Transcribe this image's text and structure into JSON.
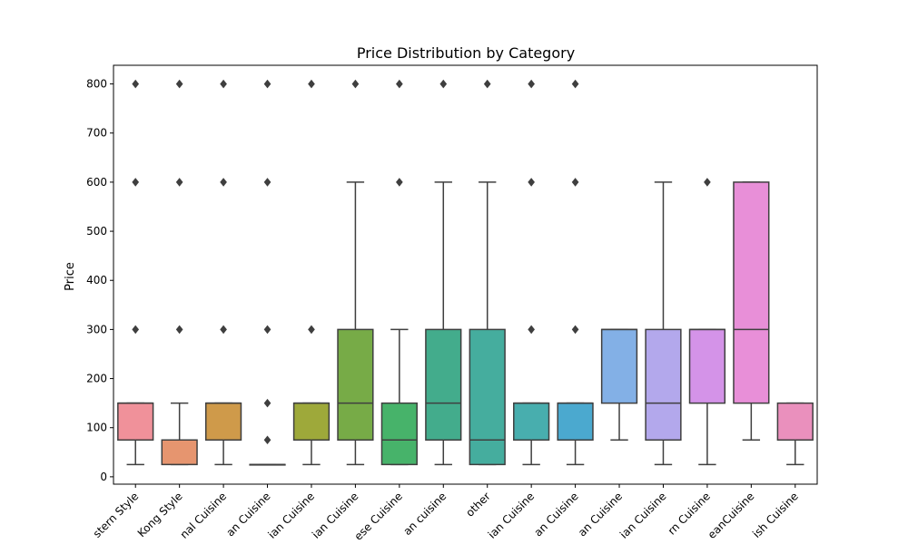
{
  "chart_data": {
    "type": "box",
    "title": "Price Distribution by Category",
    "xlabel": "",
    "ylabel": "Price",
    "ylim": [
      -15,
      838
    ],
    "yticks": [
      0,
      100,
      200,
      300,
      400,
      500,
      600,
      700,
      800
    ],
    "grid": false,
    "categories": [
      {
        "label": "stern Style",
        "color": "#f0919a",
        "q1": 75,
        "median": 150,
        "q3": 150,
        "whisker_low": 25,
        "whisker_high": 150,
        "outliers": [
          300,
          600,
          800
        ]
      },
      {
        "label": "Kong Style",
        "color": "#e6956f",
        "q1": 25,
        "median": 75,
        "q3": 75,
        "whisker_low": 25,
        "whisker_high": 150,
        "outliers": [
          300,
          600,
          800
        ]
      },
      {
        "label": "nal Cuisine",
        "color": "#cf9a4a",
        "q1": 75,
        "median": 150,
        "q3": 150,
        "whisker_low": 25,
        "whisker_high": 150,
        "outliers": [
          300,
          600,
          800
        ]
      },
      {
        "label": "an Cuisine",
        "color": "#b1a04a",
        "q1": 25,
        "median": 25,
        "q3": 25,
        "whisker_low": 25,
        "whisker_high": 25,
        "outliers": [
          75,
          150,
          300,
          600,
          800
        ]
      },
      {
        "label": "ian Cuisine",
        "color": "#9ea93a",
        "q1": 75,
        "median": 150,
        "q3": 150,
        "whisker_low": 25,
        "whisker_high": 150,
        "outliers": [
          300,
          800
        ]
      },
      {
        "label": "ian Cuisine",
        "color": "#77ab47",
        "q1": 75,
        "median": 150,
        "q3": 300,
        "whisker_low": 25,
        "whisker_high": 600,
        "outliers": [
          800
        ]
      },
      {
        "label": "ese Cuisine",
        "color": "#47b36a",
        "q1": 25,
        "median": 75,
        "q3": 150,
        "whisker_low": 25,
        "whisker_high": 300,
        "outliers": [
          600,
          800
        ]
      },
      {
        "label": "an cuisine",
        "color": "#43ac8c",
        "q1": 75,
        "median": 150,
        "q3": 300,
        "whisker_low": 25,
        "whisker_high": 600,
        "outliers": [
          800
        ]
      },
      {
        "label": "other",
        "color": "#45ad9e",
        "q1": 25,
        "median": 75,
        "q3": 300,
        "whisker_low": 25,
        "whisker_high": 600,
        "outliers": [
          800
        ]
      },
      {
        "label": "ian Cuisine",
        "color": "#48aeae",
        "q1": 75,
        "median": 150,
        "q3": 150,
        "whisker_low": 25,
        "whisker_high": 150,
        "outliers": [
          300,
          600,
          800
        ]
      },
      {
        "label": "an Cuisine",
        "color": "#4ba9cf",
        "q1": 75,
        "median": 150,
        "q3": 150,
        "whisker_low": 25,
        "whisker_high": 150,
        "outliers": [
          300,
          600,
          800
        ]
      },
      {
        "label": "an Cuisine",
        "color": "#83b0e6",
        "q1": 150,
        "median": 300,
        "q3": 300,
        "whisker_low": 75,
        "whisker_high": 300,
        "outliers": []
      },
      {
        "label": "ian Cuisine",
        "color": "#b3a8ec",
        "q1": 75,
        "median": 150,
        "q3": 300,
        "whisker_low": 25,
        "whisker_high": 600,
        "outliers": []
      },
      {
        "label": "rn Cuisine",
        "color": "#d493e8",
        "q1": 150,
        "median": 300,
        "q3": 300,
        "whisker_low": 25,
        "whisker_high": 300,
        "outliers": [
          600
        ]
      },
      {
        "label": "eanCuisine",
        "color": "#e88fd8",
        "q1": 150,
        "median": 300,
        "q3": 600,
        "whisker_low": 75,
        "whisker_high": 600,
        "outliers": []
      },
      {
        "label": "ish Cuisine",
        "color": "#ea90bd",
        "q1": 75,
        "median": 75,
        "q3": 150,
        "whisker_low": 25,
        "whisker_high": 150,
        "outliers": []
      }
    ]
  }
}
